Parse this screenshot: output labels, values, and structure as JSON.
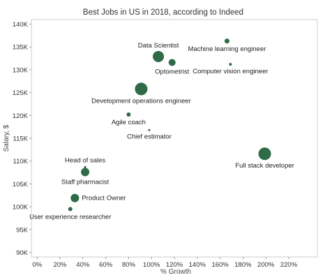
{
  "chart_data": {
    "type": "scatter",
    "title": "Best Jobs in US in 2018, according to Indeed",
    "xlabel": "% Growth",
    "ylabel": "Salary, $",
    "xlim": [
      -0.05,
      2.45
    ],
    "ylim": [
      89000,
      141000
    ],
    "x_ticks": [
      {
        "value": 0,
        "label": "0%"
      },
      {
        "value": 0.2,
        "label": "20%"
      },
      {
        "value": 0.4,
        "label": "40%"
      },
      {
        "value": 0.6,
        "label": "60%"
      },
      {
        "value": 0.8,
        "label": "80%"
      },
      {
        "value": 1.0,
        "label": "100%"
      },
      {
        "value": 1.2,
        "label": "120%"
      },
      {
        "value": 1.4,
        "label": "140%"
      },
      {
        "value": 1.6,
        "label": "160%"
      },
      {
        "value": 1.8,
        "label": "180%"
      },
      {
        "value": 2.0,
        "label": "200%"
      },
      {
        "value": 2.2,
        "label": "220%"
      }
    ],
    "y_ticks": [
      {
        "value": 90000,
        "label": "90K"
      },
      {
        "value": 95000,
        "label": "95K"
      },
      {
        "value": 100000,
        "label": "100K"
      },
      {
        "value": 105000,
        "label": "105K"
      },
      {
        "value": 110000,
        "label": "110K"
      },
      {
        "value": 115000,
        "label": "115K"
      },
      {
        "value": 120000,
        "label": "120K"
      },
      {
        "value": 125000,
        "label": "125K"
      },
      {
        "value": 130000,
        "label": "130K"
      },
      {
        "value": 135000,
        "label": "135K"
      },
      {
        "value": 140000,
        "label": "140K"
      }
    ],
    "grid": false,
    "point_color": "#2e6b46",
    "points": [
      {
        "label": "Data Scientist",
        "x": 1.06,
        "y": 132900,
        "size": 8,
        "label_pos": "above"
      },
      {
        "label": "Machine learning engineer",
        "x": 1.66,
        "y": 136300,
        "size": 3.5,
        "label_pos": "below"
      },
      {
        "label": "Optometrist",
        "x": 1.18,
        "y": 131600,
        "size": 5,
        "label_pos": "below"
      },
      {
        "label": "Computer vision engineer",
        "x": 1.69,
        "y": 131200,
        "size": 2,
        "label_pos": "below"
      },
      {
        "label": "Development operations engineer",
        "x": 0.91,
        "y": 125800,
        "size": 9,
        "label_pos": "below"
      },
      {
        "label": "Agile coach",
        "x": 0.8,
        "y": 120200,
        "size": 3,
        "label_pos": "below"
      },
      {
        "label": "Chief estimator",
        "x": 0.98,
        "y": 116800,
        "size": 1.5,
        "label_pos": "below"
      },
      {
        "label": "Full stack developer",
        "x": 1.99,
        "y": 111600,
        "size": 9,
        "label_pos": "below"
      },
      {
        "label": "Head of sales",
        "x": 0.42,
        "y": 108700,
        "size": 1.5,
        "label_pos": "above"
      },
      {
        "label": "Staff pharmacist",
        "x": 0.42,
        "y": 107600,
        "size": 6,
        "label_pos": "below"
      },
      {
        "label": "Product Owner",
        "x": 0.33,
        "y": 101900,
        "size": 6,
        "label_pos": "right"
      },
      {
        "label": "User experience researcher",
        "x": 0.29,
        "y": 99500,
        "size": 3,
        "label_pos": "below"
      }
    ]
  }
}
